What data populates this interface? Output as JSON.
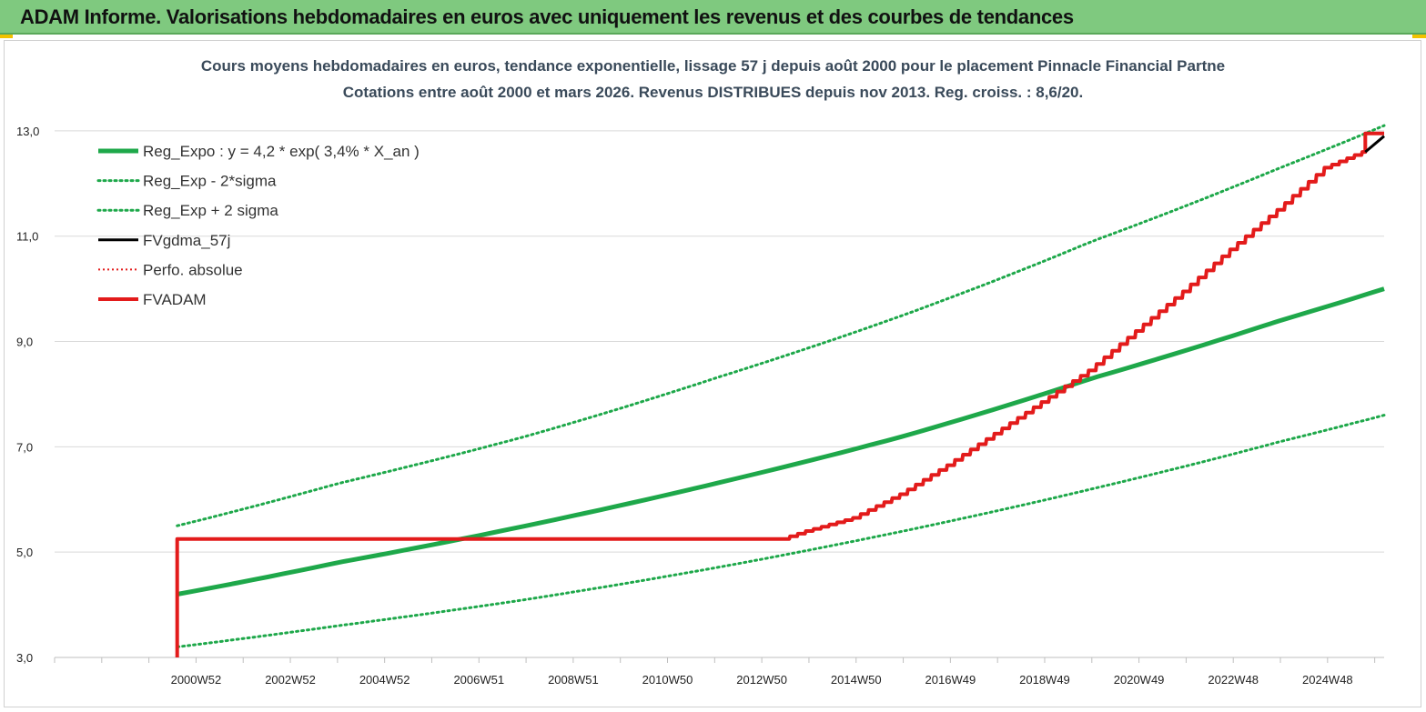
{
  "header": {
    "title": "ADAM Informe. Valorisations hebdomadaires en euros avec uniquement les revenus et des courbes de tendances"
  },
  "colors": {
    "banner": "#7fc97f",
    "accent": "#f2c200",
    "reg": "#1ea84a",
    "fvgdma": "#000000",
    "fvadam": "#e31b1b",
    "grid": "#d9d9d9"
  },
  "chart_data": {
    "type": "line",
    "title": "Cours moyens hebdomadaires en euros, tendance exponentielle, lissage 57 j depuis août 2000 pour le placement Pinnacle Financial Partne",
    "subtitle": "Cotations entre août 2000 et mars 2026. Revenus DISTRIBUES depuis nov 2013. Reg. croiss. : 8,6/20.",
    "xlabel": "",
    "ylabel": "",
    "xlim": [
      1998.0,
      2026.2
    ],
    "ylim": [
      3.0,
      14.0
    ],
    "y_ticks": [
      "3,0",
      "5,0",
      "7,0",
      "9,0",
      "11,0",
      "13,0"
    ],
    "y_tick_values": [
      3,
      5,
      7,
      9,
      11,
      13
    ],
    "x_ticks": [
      {
        "label": "2000W52",
        "x": 2001
      },
      {
        "label": "2002W52",
        "x": 2003
      },
      {
        "label": "2004W52",
        "x": 2005
      },
      {
        "label": "2006W51",
        "x": 2007
      },
      {
        "label": "2008W51",
        "x": 2009
      },
      {
        "label": "2010W50",
        "x": 2011
      },
      {
        "label": "2012W50",
        "x": 2013
      },
      {
        "label": "2014W50",
        "x": 2015
      },
      {
        "label": "2016W49",
        "x": 2017
      },
      {
        "label": "2018W49",
        "x": 2019
      },
      {
        "label": "2020W49",
        "x": 2021
      },
      {
        "label": "2022W48",
        "x": 2023
      },
      {
        "label": "2024W48",
        "x": 2025
      }
    ],
    "grid": true,
    "legend_position": "top-left",
    "series": [
      {
        "name": "Reg_Expo : y = 4,2 * exp( 3,4% *  X_an )",
        "style": "solid-thick",
        "color": "#1ea84a",
        "x": [
          2000.6,
          2004,
          2008,
          2012,
          2016,
          2020,
          2024,
          2026.2
        ],
        "y": [
          4.2,
          4.8,
          5.5,
          6.3,
          7.2,
          8.3,
          9.4,
          10.0
        ]
      },
      {
        "name": "Reg_Exp - 2*sigma",
        "style": "dotted",
        "color": "#1ea84a",
        "x": [
          2000.6,
          2004,
          2008,
          2012,
          2016,
          2020,
          2024,
          2026.2
        ],
        "y": [
          3.2,
          3.6,
          4.1,
          4.7,
          5.4,
          6.2,
          7.1,
          7.6
        ]
      },
      {
        "name": "Reg_Exp + 2 sigma",
        "style": "dotted",
        "color": "#1ea84a",
        "x": [
          2000.6,
          2004,
          2008,
          2012,
          2016,
          2020,
          2024,
          2026.2
        ],
        "y": [
          5.5,
          6.3,
          7.2,
          8.3,
          9.5,
          10.9,
          12.3,
          13.1
        ]
      },
      {
        "name": "FVgdma_57j",
        "style": "solid",
        "color": "#000000",
        "x": [
          2025.8,
          2026.2
        ],
        "y": [
          12.6,
          12.9
        ]
      },
      {
        "name": "Perfo. absolue",
        "style": "dotted-thin",
        "color": "#e31b1b",
        "x": [],
        "y": []
      },
      {
        "name": "FVADAM",
        "style": "solid-thick",
        "color": "#e31b1b",
        "x": [
          2000.6,
          2000.6,
          2013.5,
          2014,
          2015,
          2016,
          2017,
          2018,
          2019,
          2020,
          2021,
          2022,
          2023,
          2024,
          2025,
          2025.8,
          2025.8,
          2026.2
        ],
        "y": [
          3.0,
          5.25,
          5.25,
          5.4,
          5.65,
          6.1,
          6.65,
          7.25,
          7.85,
          8.45,
          9.2,
          9.95,
          10.75,
          11.5,
          12.3,
          12.6,
          12.95,
          12.95
        ]
      }
    ]
  }
}
